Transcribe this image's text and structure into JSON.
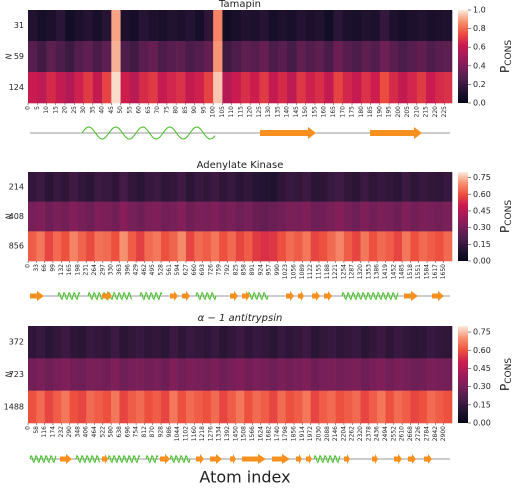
{
  "xlabel": "Atom index",
  "colormap": [
    "#03051a",
    "#221331",
    "#4c1d4b",
    "#761f58",
    "#a11a5b",
    "#cb1b4f",
    "#ed503e",
    "#f6916f",
    "#faebdd"
  ],
  "chart_data": [
    {
      "type": "heatmap",
      "title": "Tamapin",
      "ylabel": "N",
      "rows": [
        "31",
        "59",
        "124"
      ],
      "x": [
        0,
        5,
        10,
        15,
        20,
        25,
        30,
        35,
        40,
        45,
        50,
        55,
        60,
        65,
        70,
        75,
        80,
        85,
        90,
        95,
        100,
        105,
        110,
        115,
        120,
        125,
        130,
        135,
        140,
        145,
        150,
        155,
        160,
        165,
        170,
        175,
        180,
        185,
        190,
        195,
        200,
        205,
        210,
        215,
        220,
        225
      ],
      "xlim": [
        0,
        229
      ],
      "xticks": [
        0,
        5,
        10,
        15,
        20,
        25,
        30,
        35,
        40,
        45,
        50,
        55,
        60,
        65,
        70,
        75,
        80,
        85,
        90,
        95,
        100,
        105,
        110,
        115,
        120,
        125,
        130,
        135,
        140,
        145,
        150,
        155,
        160,
        165,
        170,
        175,
        180,
        185,
        190,
        195,
        200,
        205,
        210,
        215,
        220,
        225
      ],
      "values": [
        [
          0.12,
          0.08,
          0.1,
          0.15,
          0.07,
          0.1,
          0.13,
          0.09,
          0.14,
          0.9,
          0.1,
          0.08,
          0.14,
          0.11,
          0.09,
          0.12,
          0.1,
          0.13,
          0.08,
          0.16,
          0.85,
          0.06,
          0.09,
          0.12,
          0.1,
          0.14,
          0.08,
          0.11,
          0.09,
          0.13,
          0.1,
          0.12,
          0.07,
          0.15,
          0.1,
          0.09,
          0.12,
          0.1,
          0.18,
          0.11,
          0.08,
          0.1,
          0.12,
          0.09,
          0.1,
          0.11
        ],
        [
          0.28,
          0.22,
          0.3,
          0.25,
          0.2,
          0.27,
          0.31,
          0.24,
          0.3,
          0.92,
          0.26,
          0.22,
          0.29,
          0.33,
          0.25,
          0.28,
          0.3,
          0.24,
          0.27,
          0.32,
          0.88,
          0.21,
          0.26,
          0.3,
          0.28,
          0.33,
          0.25,
          0.29,
          0.23,
          0.31,
          0.27,
          0.3,
          0.24,
          0.34,
          0.28,
          0.25,
          0.3,
          0.27,
          0.35,
          0.29,
          0.24,
          0.28,
          0.31,
          0.26,
          0.29,
          0.3
        ],
        [
          0.62,
          0.58,
          0.66,
          0.6,
          0.55,
          0.64,
          0.7,
          0.6,
          0.72,
          0.98,
          0.63,
          0.57,
          0.66,
          0.7,
          0.61,
          0.65,
          0.68,
          0.6,
          0.64,
          0.72,
          0.95,
          0.56,
          0.62,
          0.67,
          0.63,
          0.7,
          0.6,
          0.66,
          0.58,
          0.69,
          0.64,
          0.67,
          0.6,
          0.72,
          0.65,
          0.61,
          0.68,
          0.63,
          0.74,
          0.66,
          0.6,
          0.65,
          0.7,
          0.62,
          0.66,
          0.68
        ]
      ],
      "clim": [
        0,
        1
      ],
      "cticks": [
        {
          "value": 0,
          "label": "0.0"
        },
        0.2,
        0.4,
        0.6,
        0.8,
        {
          "value": 1,
          "label": "1.0"
        }
      ],
      "colorbar_label": "P",
      "colorbar_label_sub": "CONS"
    },
    {
      "type": "heatmap",
      "title": "Adenylate Kinase",
      "ylabel": "N",
      "rows": [
        "214",
        "408",
        "856"
      ],
      "x": [
        0,
        33,
        66,
        99,
        132,
        165,
        198,
        231,
        264,
        297,
        330,
        363,
        396,
        429,
        462,
        495,
        528,
        561,
        594,
        627,
        660,
        693,
        726,
        759,
        792,
        825,
        858,
        891,
        924,
        957,
        990,
        1023,
        1056,
        1089,
        1122,
        1155,
        1188,
        1221,
        1254,
        1287,
        1320,
        1353,
        1386,
        1419,
        1452,
        1485,
        1518,
        1551,
        1584,
        1617,
        1650
      ],
      "xlim": [
        0,
        1683
      ],
      "xticks": [
        0,
        33,
        66,
        99,
        132,
        165,
        198,
        231,
        264,
        297,
        330,
        363,
        396,
        429,
        462,
        495,
        528,
        561,
        594,
        627,
        660,
        693,
        726,
        759,
        792,
        825,
        858,
        891,
        924,
        957,
        990,
        1023,
        1056,
        1089,
        1122,
        1155,
        1188,
        1221,
        1254,
        1287,
        1320,
        1353,
        1386,
        1419,
        1452,
        1485,
        1518,
        1551,
        1584,
        1617,
        1650
      ],
      "values": [
        [
          0.14,
          0.16,
          0.12,
          0.15,
          0.13,
          0.17,
          0.14,
          0.12,
          0.16,
          0.15,
          0.13,
          0.18,
          0.14,
          0.12,
          0.15,
          0.16,
          0.13,
          0.14,
          0.17,
          0.12,
          0.15,
          0.14,
          0.16,
          0.13,
          0.15,
          0.12,
          0.14,
          0.11,
          0.1,
          0.09,
          0.13,
          0.15,
          0.14,
          0.16,
          0.12,
          0.13,
          0.15,
          0.17,
          0.14,
          0.12,
          0.16,
          0.13,
          0.15,
          0.14,
          0.12,
          0.16,
          0.13,
          0.15,
          0.14,
          0.13,
          0.15
        ],
        [
          0.3,
          0.32,
          0.28,
          0.31,
          0.29,
          0.33,
          0.3,
          0.28,
          0.32,
          0.31,
          0.29,
          0.34,
          0.3,
          0.28,
          0.31,
          0.32,
          0.29,
          0.3,
          0.33,
          0.28,
          0.31,
          0.3,
          0.32,
          0.29,
          0.31,
          0.28,
          0.3,
          0.27,
          0.26,
          0.27,
          0.29,
          0.31,
          0.3,
          0.32,
          0.28,
          0.29,
          0.31,
          0.33,
          0.3,
          0.28,
          0.32,
          0.29,
          0.31,
          0.3,
          0.28,
          0.32,
          0.29,
          0.31,
          0.3,
          0.29,
          0.31
        ],
        [
          0.62,
          0.66,
          0.58,
          0.64,
          0.6,
          0.68,
          0.63,
          0.59,
          0.65,
          0.64,
          0.6,
          0.7,
          0.62,
          0.57,
          0.64,
          0.66,
          0.6,
          0.63,
          0.69,
          0.58,
          0.64,
          0.62,
          0.66,
          0.6,
          0.64,
          0.58,
          0.62,
          0.56,
          0.54,
          0.55,
          0.6,
          0.64,
          0.62,
          0.66,
          0.58,
          0.6,
          0.64,
          0.68,
          0.62,
          0.58,
          0.66,
          0.6,
          0.64,
          0.62,
          0.58,
          0.66,
          0.6,
          0.64,
          0.62,
          0.6,
          0.64
        ]
      ],
      "clim": [
        0,
        0.8
      ],
      "cticks": [
        {
          "value": 0,
          "label": "0.00"
        },
        0.15,
        {
          "value": 0.3,
          "label": "0.30"
        },
        0.45,
        {
          "value": 0.6,
          "label": "0.60"
        },
        0.75
      ],
      "colorbar_label": "P",
      "colorbar_label_sub": "CONS"
    },
    {
      "type": "heatmap",
      "title": "α − 1 antitrypsin",
      "ylabel": "N",
      "rows": [
        "372",
        "723",
        "1488"
      ],
      "x": [
        0,
        58,
        116,
        174,
        232,
        290,
        348,
        406,
        464,
        522,
        580,
        638,
        696,
        754,
        812,
        870,
        928,
        986,
        1044,
        1102,
        1160,
        1218,
        1276,
        1334,
        1392,
        1450,
        1508,
        1566,
        1624,
        1682,
        1740,
        1798,
        1856,
        1914,
        1972,
        2030,
        2088,
        2146,
        2204,
        2262,
        2320,
        2378,
        2436,
        2494,
        2552,
        2610,
        2668,
        2726,
        2784,
        2842,
        2900
      ],
      "xlim": [
        0,
        2958
      ],
      "xticks": [
        0,
        58,
        116,
        174,
        232,
        290,
        348,
        406,
        464,
        522,
        580,
        638,
        696,
        754,
        812,
        870,
        928,
        986,
        1044,
        1102,
        1160,
        1218,
        1276,
        1334,
        1392,
        1450,
        1508,
        1566,
        1624,
        1682,
        1740,
        1798,
        1856,
        1914,
        1972,
        2030,
        2088,
        2146,
        2204,
        2262,
        2320,
        2378,
        2436,
        2494,
        2552,
        2610,
        2668,
        2726,
        2784,
        2842,
        2900
      ],
      "values": [
        [
          0.13,
          0.15,
          0.12,
          0.14,
          0.16,
          0.13,
          0.12,
          0.15,
          0.14,
          0.13,
          0.16,
          0.12,
          0.14,
          0.15,
          0.13,
          0.14,
          0.12,
          0.16,
          0.13,
          0.15,
          0.14,
          0.13,
          0.15,
          0.12,
          0.14,
          0.16,
          0.13,
          0.15,
          0.14,
          0.12,
          0.15,
          0.13,
          0.14,
          0.16,
          0.12,
          0.14,
          0.15,
          0.13,
          0.14,
          0.15,
          0.12,
          0.14,
          0.16,
          0.13,
          0.15,
          0.14,
          0.12,
          0.13,
          0.15,
          0.14,
          0.13
        ],
        [
          0.29,
          0.31,
          0.28,
          0.3,
          0.32,
          0.29,
          0.28,
          0.31,
          0.3,
          0.29,
          0.32,
          0.28,
          0.3,
          0.31,
          0.29,
          0.3,
          0.28,
          0.32,
          0.29,
          0.31,
          0.3,
          0.29,
          0.31,
          0.28,
          0.3,
          0.32,
          0.29,
          0.31,
          0.3,
          0.28,
          0.31,
          0.29,
          0.3,
          0.32,
          0.28,
          0.3,
          0.31,
          0.29,
          0.3,
          0.31,
          0.28,
          0.3,
          0.32,
          0.29,
          0.31,
          0.3,
          0.28,
          0.29,
          0.31,
          0.3,
          0.29
        ],
        [
          0.6,
          0.64,
          0.58,
          0.62,
          0.66,
          0.6,
          0.58,
          0.64,
          0.62,
          0.6,
          0.66,
          0.58,
          0.62,
          0.64,
          0.6,
          0.62,
          0.58,
          0.66,
          0.6,
          0.64,
          0.62,
          0.6,
          0.64,
          0.58,
          0.62,
          0.66,
          0.6,
          0.64,
          0.62,
          0.58,
          0.64,
          0.6,
          0.62,
          0.66,
          0.58,
          0.62,
          0.64,
          0.6,
          0.62,
          0.64,
          0.58,
          0.62,
          0.66,
          0.6,
          0.64,
          0.62,
          0.58,
          0.6,
          0.64,
          0.62,
          0.6
        ]
      ],
      "clim": [
        0,
        0.8
      ],
      "cticks": [
        {
          "value": 0,
          "label": "0.00"
        },
        0.15,
        {
          "value": 0.3,
          "label": "0.30"
        },
        0.45,
        {
          "value": 0.6,
          "label": "0.60"
        },
        0.75
      ],
      "colorbar_label": "P",
      "colorbar_label_sub": "CONS"
    }
  ]
}
